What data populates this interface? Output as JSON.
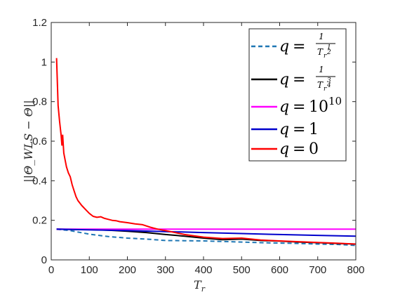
{
  "chart_data": {
    "type": "line",
    "xlabel_base": "T",
    "xlabel_sub": "r",
    "ylabel": "||Θ_WLS − Θ||",
    "xlim": [
      0,
      800
    ],
    "ylim": [
      0,
      1.2
    ],
    "x_ticks": [
      "0",
      "100",
      "200",
      "300",
      "400",
      "500",
      "600",
      "700",
      "800"
    ],
    "y_ticks": [
      "0",
      "0.2",
      "0.4",
      "0.6",
      "0.8",
      "1",
      "1.2"
    ],
    "grid": false,
    "legend_position": "top-right",
    "series": [
      {
        "name": "q = 1/T_r^(1/2)",
        "color": "#1f77b4",
        "dash": "dashed",
        "x": [
          14,
          50,
          100,
          150,
          200,
          250,
          300,
          350,
          400,
          450,
          500,
          550,
          600,
          650,
          700,
          750,
          800
        ],
        "y": [
          0.155,
          0.148,
          0.13,
          0.118,
          0.11,
          0.105,
          0.098,
          0.097,
          0.096,
          0.093,
          0.09,
          0.087,
          0.085,
          0.083,
          0.08,
          0.078,
          0.073
        ]
      },
      {
        "name": "q = 1/T_r^(3/4)",
        "color": "#000000",
        "dash": "solid",
        "x": [
          14,
          50,
          100,
          150,
          200,
          250,
          300,
          350,
          400,
          450,
          500,
          550,
          600,
          650,
          700,
          750,
          800
        ],
        "y": [
          0.155,
          0.154,
          0.153,
          0.15,
          0.145,
          0.138,
          0.128,
          0.12,
          0.11,
          0.102,
          0.105,
          0.098,
          0.095,
          0.09,
          0.087,
          0.083,
          0.08
        ]
      },
      {
        "name": "q = 10^10",
        "color": "#ff00ff",
        "dash": "solid",
        "x": [
          14,
          100,
          200,
          300,
          400,
          500,
          600,
          700,
          800
        ],
        "y": [
          0.155,
          0.155,
          0.155,
          0.155,
          0.155,
          0.155,
          0.155,
          0.155,
          0.155
        ]
      },
      {
        "name": "q = 1",
        "color": "#0000cc",
        "dash": "solid",
        "x": [
          14,
          100,
          200,
          300,
          400,
          500,
          600,
          700,
          800
        ],
        "y": [
          0.155,
          0.152,
          0.148,
          0.143,
          0.138,
          0.133,
          0.128,
          0.124,
          0.12
        ]
      },
      {
        "name": "q = 0",
        "color": "#ff0000",
        "dash": "solid",
        "x": [
          14,
          18,
          22,
          26,
          28,
          30,
          33,
          36,
          40,
          45,
          50,
          55,
          60,
          65,
          70,
          80,
          90,
          100,
          110,
          120,
          130,
          140,
          150,
          160,
          170,
          180,
          200,
          220,
          240,
          260,
          280,
          300,
          350,
          400,
          450,
          500,
          550,
          600,
          650,
          700,
          750,
          800
        ],
        "y": [
          1.02,
          0.78,
          0.7,
          0.63,
          0.58,
          0.63,
          0.54,
          0.51,
          0.47,
          0.44,
          0.42,
          0.38,
          0.35,
          0.32,
          0.3,
          0.275,
          0.255,
          0.235,
          0.22,
          0.215,
          0.218,
          0.21,
          0.205,
          0.2,
          0.198,
          0.193,
          0.188,
          0.182,
          0.178,
          0.165,
          0.155,
          0.148,
          0.128,
          0.115,
          0.108,
          0.11,
          0.1,
          0.096,
          0.092,
          0.088,
          0.084,
          0.08
        ]
      }
    ],
    "legend": {
      "eq": "=",
      "one": "1",
      "items": [
        {
          "q": "q",
          "base": "T",
          "sub": "r",
          "exp_num": "1",
          "exp_den": "2"
        },
        {
          "q": "q",
          "base": "T",
          "sub": "r",
          "exp_num": "3",
          "exp_den": "4"
        },
        {
          "q": "q",
          "value": "10",
          "exponent": "10"
        },
        {
          "q": "q",
          "value": "1"
        },
        {
          "q": "q",
          "value": "0"
        }
      ]
    }
  }
}
